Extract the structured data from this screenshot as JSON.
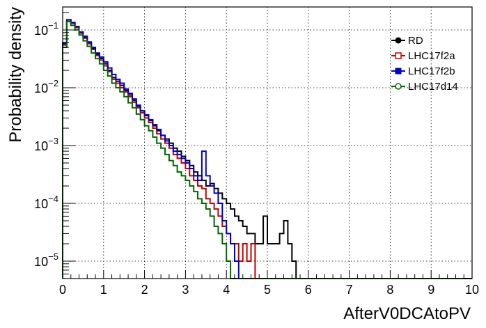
{
  "chart_data": {
    "type": "histogram-step",
    "xlabel": "AfterV0DCAtoPV",
    "ylabel": "Probability density",
    "xlim": [
      0,
      10
    ],
    "ylim": [
      5e-06,
      0.25
    ],
    "y_scale": "log",
    "grid": true,
    "legend_position": "top-right",
    "x_ticks": [
      "0",
      "1",
      "2",
      "3",
      "4",
      "5",
      "6",
      "7",
      "8",
      "9",
      "10"
    ],
    "y_ticks": [
      {
        "value": 0.1,
        "base": "10",
        "exp": "−1"
      },
      {
        "value": 0.01,
        "base": "10",
        "exp": "−2"
      },
      {
        "value": 0.001,
        "base": "10",
        "exp": "−3"
      },
      {
        "value": 0.0001,
        "base": "10",
        "exp": "−4"
      },
      {
        "value": 1e-05,
        "base": "10",
        "exp": "−5"
      }
    ],
    "bin_width": 0.1,
    "series": [
      {
        "name": "RD",
        "color": "#000000",
        "marker": "circle-filled",
        "values": [
          0.06,
          0.14,
          0.13,
          0.11,
          0.09,
          0.075,
          0.06,
          0.048,
          0.038,
          0.032,
          0.026,
          0.02,
          0.015,
          0.013,
          0.011,
          0.009,
          0.0075,
          0.006,
          0.0048,
          0.004,
          0.0033,
          0.0027,
          0.0022,
          0.0018,
          0.0015,
          0.0013,
          0.0011,
          0.0009,
          0.0008,
          0.00065,
          0.00055,
          0.00045,
          0.00035,
          0.0003,
          0.00025,
          0.0002,
          0.00022,
          0.00018,
          0.00015,
          0.00012,
          0.0001,
          8e-05,
          6e-05,
          5e-05,
          4e-05,
          3e-05,
          3e-05,
          2e-05,
          2e-05,
          6e-05,
          2e-05,
          2e-05,
          2e-05,
          3e-05,
          5e-05,
          2e-05,
          1e-05,
          0,
          0,
          0,
          0,
          0,
          0,
          0,
          0,
          0,
          0,
          0,
          0,
          0,
          0,
          0,
          0,
          0,
          0,
          0,
          0,
          0,
          0,
          0,
          0,
          0,
          0,
          0,
          0,
          0,
          0,
          0,
          0,
          0,
          0,
          0,
          0,
          0,
          0,
          0,
          0,
          0,
          0,
          0
        ]
      },
      {
        "name": "LHC17f2a",
        "color": "#c00000",
        "marker": "square-open",
        "values": [
          0.055,
          0.15,
          0.13,
          0.11,
          0.088,
          0.072,
          0.058,
          0.046,
          0.036,
          0.03,
          0.024,
          0.019,
          0.014,
          0.012,
          0.01,
          0.0085,
          0.007,
          0.0056,
          0.0045,
          0.0037,
          0.003,
          0.0025,
          0.002,
          0.0016,
          0.0013,
          0.0011,
          0.0009,
          0.0007,
          0.0006,
          0.0005,
          0.0004,
          0.0003,
          0.00025,
          0.0002,
          0.00018,
          0.00012,
          0.0001,
          8e-05,
          6e-05,
          4e-05,
          3e-05,
          2e-05,
          2e-05,
          1e-05,
          2e-05,
          1e-05,
          2e-05,
          0,
          0,
          0,
          0,
          0,
          0,
          0,
          0,
          0,
          0,
          0,
          0,
          0,
          0,
          0,
          0,
          0,
          0,
          0,
          0,
          0,
          0,
          0,
          0,
          0,
          0,
          0,
          0,
          0,
          0,
          0,
          0,
          0,
          0,
          0,
          0,
          0,
          0,
          0,
          0,
          0,
          0,
          0,
          0,
          0,
          0,
          0,
          0,
          0,
          0,
          0
        ]
      },
      {
        "name": "LHC17f2b",
        "color": "#0000cc",
        "marker": "square-filled",
        "values": [
          0.058,
          0.15,
          0.135,
          0.115,
          0.092,
          0.078,
          0.062,
          0.05,
          0.04,
          0.034,
          0.028,
          0.022,
          0.017,
          0.014,
          0.012,
          0.0095,
          0.008,
          0.0064,
          0.005,
          0.004,
          0.0034,
          0.0028,
          0.0023,
          0.0019,
          0.0015,
          0.0012,
          0.001,
          0.0008,
          0.0007,
          0.0006,
          0.0005,
          0.0004,
          0.0003,
          0.00025,
          0.0008,
          0.0003,
          0.0002,
          0.00015,
          0.0001,
          5e-05,
          3e-05,
          2e-05,
          1e-05,
          0,
          0,
          0,
          0,
          0,
          0,
          0,
          0,
          0,
          0,
          0,
          0,
          0,
          0,
          0,
          0,
          0,
          0,
          0,
          0,
          0,
          0,
          0,
          0,
          0,
          0,
          0,
          0,
          0,
          0,
          0,
          0,
          0,
          0,
          0,
          0,
          0,
          0,
          0,
          0,
          0,
          0,
          0,
          0,
          0,
          0,
          0,
          0,
          0,
          0,
          0,
          0,
          0,
          0,
          0
        ]
      },
      {
        "name": "LHC17d14",
        "color": "#006600",
        "marker": "circle-open",
        "values": [
          0.05,
          0.14,
          0.12,
          0.1,
          0.082,
          0.065,
          0.052,
          0.04,
          0.032,
          0.026,
          0.02,
          0.016,
          0.012,
          0.01,
          0.0085,
          0.007,
          0.0055,
          0.0045,
          0.0035,
          0.0028,
          0.0022,
          0.0018,
          0.0014,
          0.0011,
          0.0009,
          0.0007,
          0.00055,
          0.00045,
          0.00035,
          0.0003,
          0.00025,
          0.0002,
          0.00016,
          0.00012,
          0.0001,
          8e-05,
          6e-05,
          4e-05,
          3e-05,
          2e-05,
          1e-05,
          0,
          0,
          0,
          0,
          0,
          0,
          0,
          0,
          0,
          0,
          0,
          0,
          0,
          0,
          0,
          0,
          0,
          0,
          0,
          0,
          0,
          0,
          0,
          0,
          0,
          0,
          0,
          0,
          0,
          0,
          0,
          0,
          0,
          0,
          0,
          0,
          0,
          0,
          0,
          0,
          0,
          0,
          0,
          0,
          0,
          0,
          0,
          0,
          0,
          0,
          0,
          0,
          0,
          0,
          0,
          0,
          0
        ]
      }
    ]
  }
}
